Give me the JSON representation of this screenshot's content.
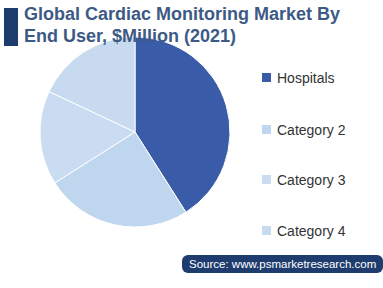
{
  "chart_data": {
    "type": "pie",
    "title": "Global Cardiac Monitoring Market By End User, $Million (2021)",
    "categories": [
      "Hospitals",
      "Category 2",
      "Category 3",
      "Category 4"
    ],
    "values": [
      41,
      25,
      16,
      18
    ],
    "colors": [
      "#3a5ba8",
      "#bfd6ef",
      "#c9dcf1",
      "#c7daf0"
    ],
    "legend": "right",
    "source": "Source: www.psmarketresearch.com"
  }
}
